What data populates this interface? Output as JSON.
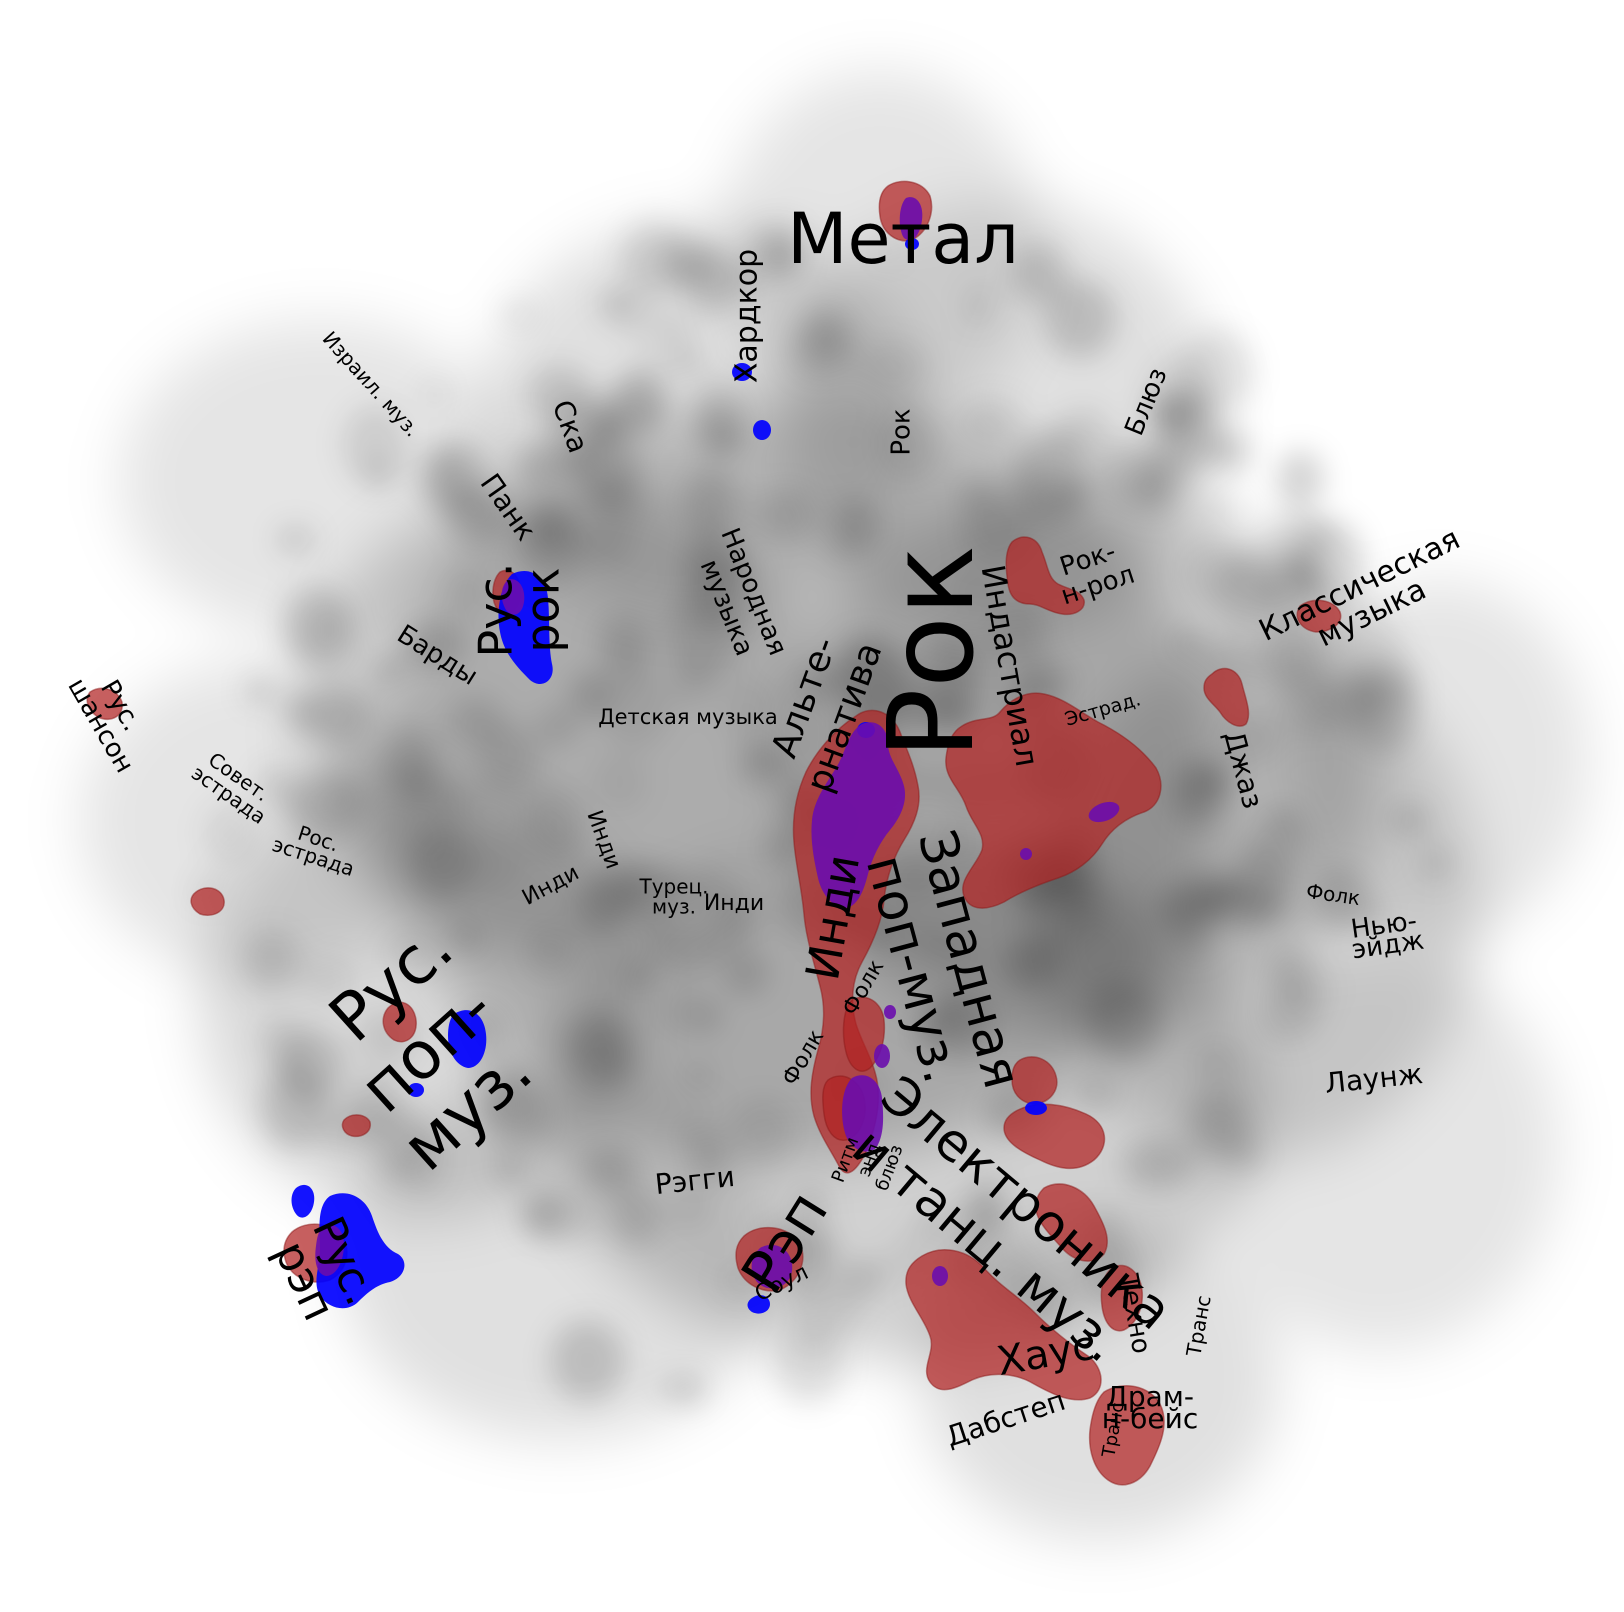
{
  "map": {
    "colors": {
      "background": "#ffffff",
      "density": "#000000",
      "cluster_red": "#b22222",
      "cluster_blue": "#0000ff",
      "overlap_purple": "#6a0dad",
      "label_text": "#000000"
    },
    "legend": null
  },
  "labels": {
    "metal": "Метал",
    "hardcore": "Хардкор",
    "israeli_music": "Израил. муз.",
    "ska": "Ска",
    "rock_small": "Рок",
    "blues": "Блюз",
    "punk": "Панк",
    "rus_rock_1": "Рус.",
    "rus_rock_2": "рок",
    "bards": "Барды",
    "folk_music_1": "Народная",
    "folk_music_2": "музыка",
    "rock_big": "Рок",
    "industrial": "Индастриал",
    "rock_n_roll_1": "Рок-",
    "rock_n_roll_2": "н-рол",
    "classical_1": "Классическая",
    "classical_2": "музыка",
    "rus_chanson_1": "Рус.",
    "rus_chanson_2": "шансон",
    "soviet_estrada_1": "Совет.",
    "soviet_estrada_2": "эстрада",
    "russian_estrada_1": "Рос.",
    "russian_estrada_2": "эстрада",
    "kids_music": "Детская музыка",
    "alternative_1": "Альте-",
    "alternative_2": "рнатива",
    "estrada": "Эстрад.",
    "jazz": "Джаз",
    "indie_a": "Инди",
    "indie_b": "Инди",
    "turkish_1": "Турец.",
    "turkish_2": "муз.",
    "indie_c": "Инди",
    "indie_big": "Инди",
    "western_pop_1": "Западная",
    "western_pop_2": "поп-муз.",
    "folk_small": "Фолк",
    "new_age_1": "Нью-",
    "new_age_2": "эйдж",
    "rus_pop_1": "Рус.",
    "rus_pop_2": "поп-",
    "rus_pop_3": "муз.",
    "folk_a": "Фолк",
    "folk_b": "Фолк",
    "lounge": "Лаунж",
    "reggae": "Рэгги",
    "rnb_1": "Ритм",
    "rnb_2": "энд",
    "rnb_3": "блюз",
    "rap": "Рэп",
    "electronica_1": "Электроника",
    "electronica_2": "и танц. муз.",
    "soul": "Соул",
    "rus_rap_1": "Рус.",
    "rus_rap_2": "рэп",
    "techno": "Техно",
    "trance_a": "Транс",
    "house": "Хаус",
    "drum_bass_1": "Драм-",
    "drum_bass_2": "н-бейс",
    "dubstep": "Дабстеп",
    "trance_b": "Транс"
  }
}
